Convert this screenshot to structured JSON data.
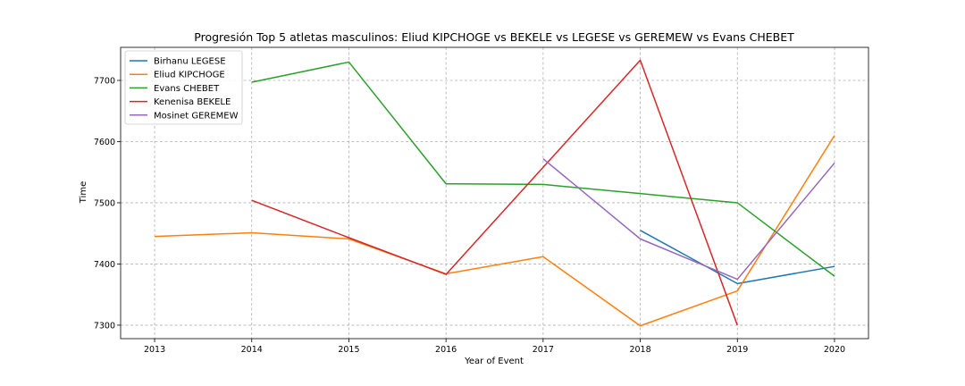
{
  "chart_data": {
    "type": "line",
    "title": "Progresión Top 5 atletas masculinos: Eliud KIPCHOGE vs BEKELE vs LEGESE vs GEREMEW vs Evans CHEBET",
    "xlabel": "Year of Event",
    "ylabel": "Time",
    "xlim": [
      2012.65,
      2020.35
    ],
    "ylim": [
      7278,
      7754
    ],
    "x_ticks": [
      2013,
      2014,
      2015,
      2016,
      2017,
      2018,
      2019,
      2020
    ],
    "y_ticks": [
      7300,
      7400,
      7500,
      7600,
      7700
    ],
    "grid": true,
    "legend_position": "top-left",
    "series": [
      {
        "name": "Birhanu LEGESE",
        "color": "#1f77b4",
        "points": [
          [
            2018,
            7455
          ],
          [
            2019,
            7368
          ],
          [
            2020,
            7396
          ]
        ]
      },
      {
        "name": "Eliud KIPCHOGE",
        "color": "#ff7f0e",
        "points": [
          [
            2013,
            7445
          ],
          [
            2014,
            7451
          ],
          [
            2015,
            7441
          ],
          [
            2016,
            7384
          ],
          [
            2017,
            7412
          ],
          [
            2018,
            7299
          ],
          [
            2019,
            7356
          ],
          [
            2020,
            7610
          ]
        ]
      },
      {
        "name": "Evans CHEBET",
        "color": "#2ca02c",
        "points": [
          [
            2014,
            7697
          ],
          [
            2015,
            7730
          ],
          [
            2016,
            7531
          ],
          [
            2017,
            7530
          ],
          [
            2018,
            7515
          ],
          [
            2019,
            7500
          ],
          [
            2020,
            7380
          ]
        ]
      },
      {
        "name": "Kenenisa BEKELE",
        "color": "#d62728",
        "points": [
          [
            2014,
            7504
          ],
          [
            2015,
            7443
          ],
          [
            2016,
            7383
          ],
          [
            2017,
            7558
          ],
          [
            2018,
            7733
          ],
          [
            2019,
            7300
          ]
        ]
      },
      {
        "name": "Mosinet GEREMEW",
        "color": "#9467bd",
        "points": [
          [
            2017,
            7572
          ],
          [
            2018,
            7441
          ],
          [
            2019,
            7375
          ],
          [
            2020,
            7565
          ]
        ]
      }
    ]
  }
}
